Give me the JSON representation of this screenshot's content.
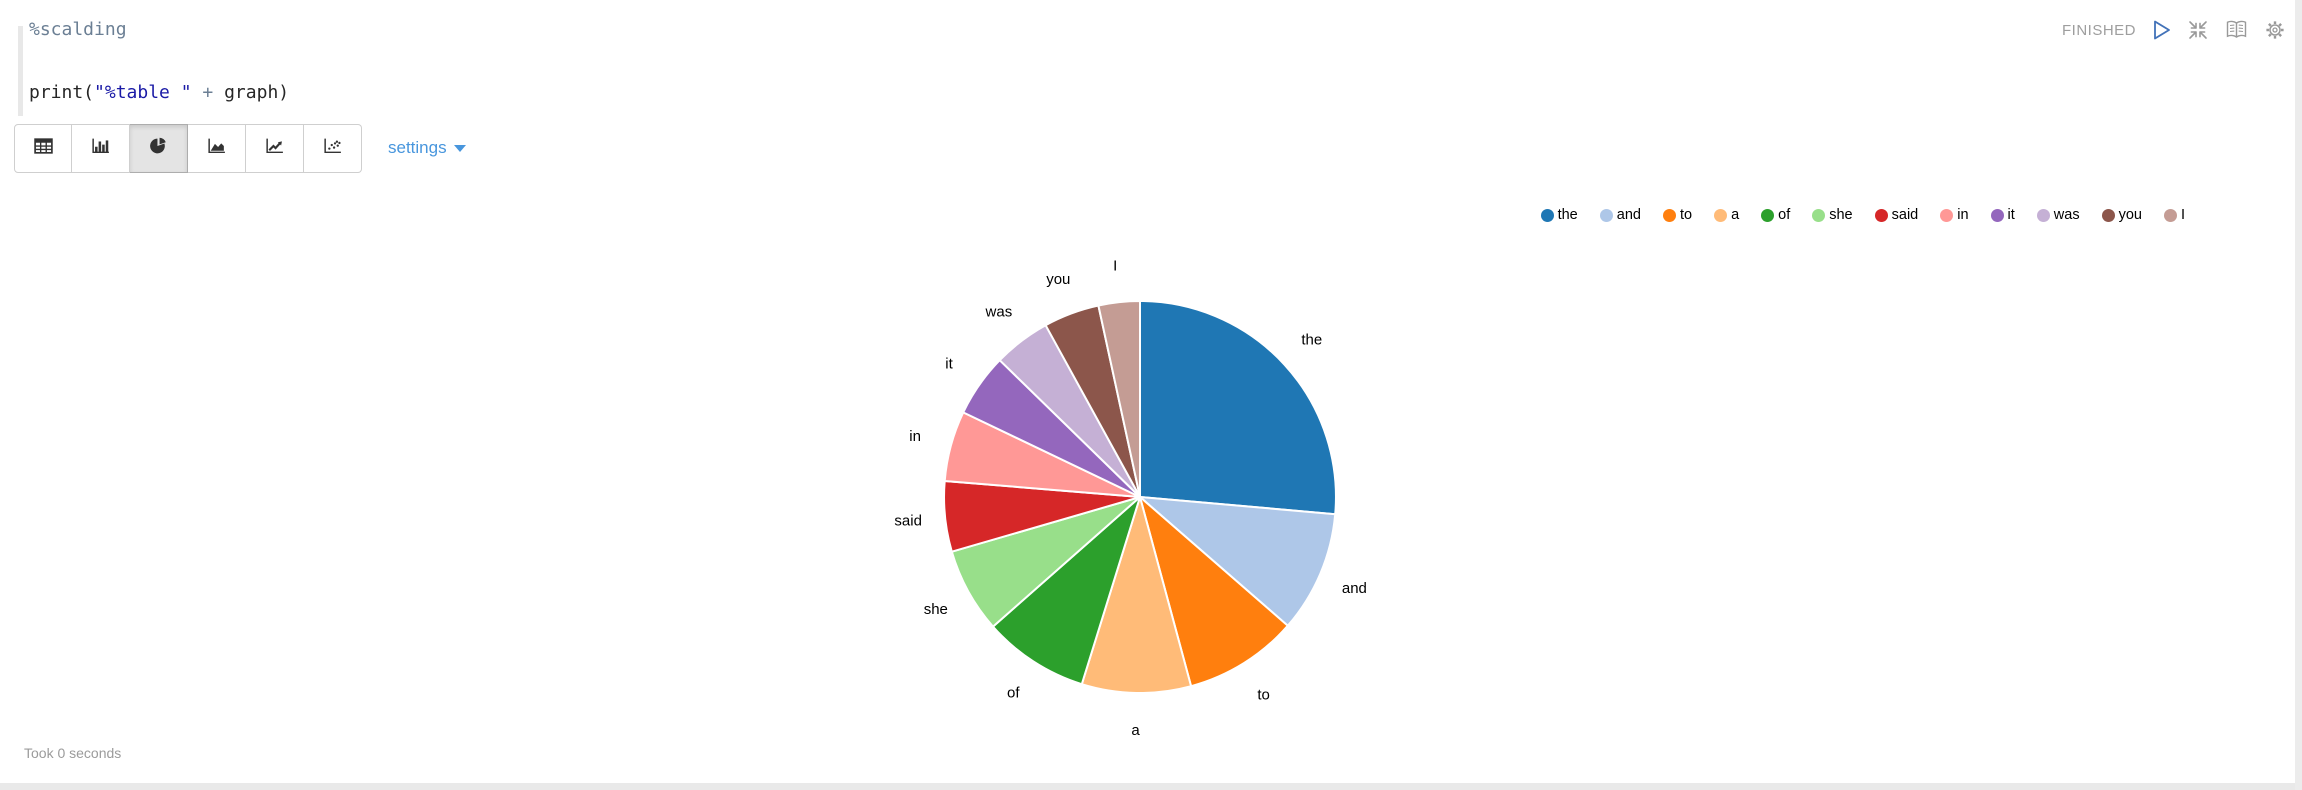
{
  "editor": {
    "line1": {
      "directive": "%scalding"
    },
    "line3": {
      "pre": "print(",
      "string": "\"%table \"",
      "operator": " + ",
      "post": "graph)"
    }
  },
  "status": {
    "state": "FINISHED",
    "icons": [
      "play-icon",
      "shrink-icon",
      "book-icon",
      "gear-icon"
    ]
  },
  "toolbar": {
    "buttons": [
      "table",
      "bar-chart",
      "pie-chart",
      "area-chart",
      "line-chart",
      "scatter-chart"
    ],
    "active_button": "pie-chart",
    "settings_label": "settings"
  },
  "chart_data": {
    "type": "pie",
    "title": "",
    "categories": [
      "the",
      "and",
      "to",
      "a",
      "of",
      "she",
      "said",
      "in",
      "it",
      "was",
      "you",
      "I"
    ],
    "values": [
      26.4,
      10.0,
      9.4,
      9.0,
      8.7,
      7.0,
      5.8,
      5.8,
      5.2,
      4.7,
      4.6,
      3.4
    ],
    "value_unit": "percent-of-pie (estimated from slice angles)",
    "colors": [
      "#1f77b4",
      "#aec7e8",
      "#ff7f0e",
      "#ffbb78",
      "#2ca02c",
      "#98df8a",
      "#d62728",
      "#ff9896",
      "#9467bd",
      "#c5b0d5",
      "#8c564b",
      "#c49c94"
    ],
    "legend_position": "top-right",
    "labels": "category names outside slices",
    "start_angle_deg": 0,
    "direction": "clockwise"
  },
  "footer": {
    "took": "Took 0 seconds"
  },
  "ui_colors": {
    "link_blue": "#4896dd",
    "play_blue": "#4272b8",
    "icon_gray": "#999999",
    "status_gray": "#9e9e9e",
    "string_blue": "#1a1aa6",
    "directive_slate": "#6b7f94"
  }
}
